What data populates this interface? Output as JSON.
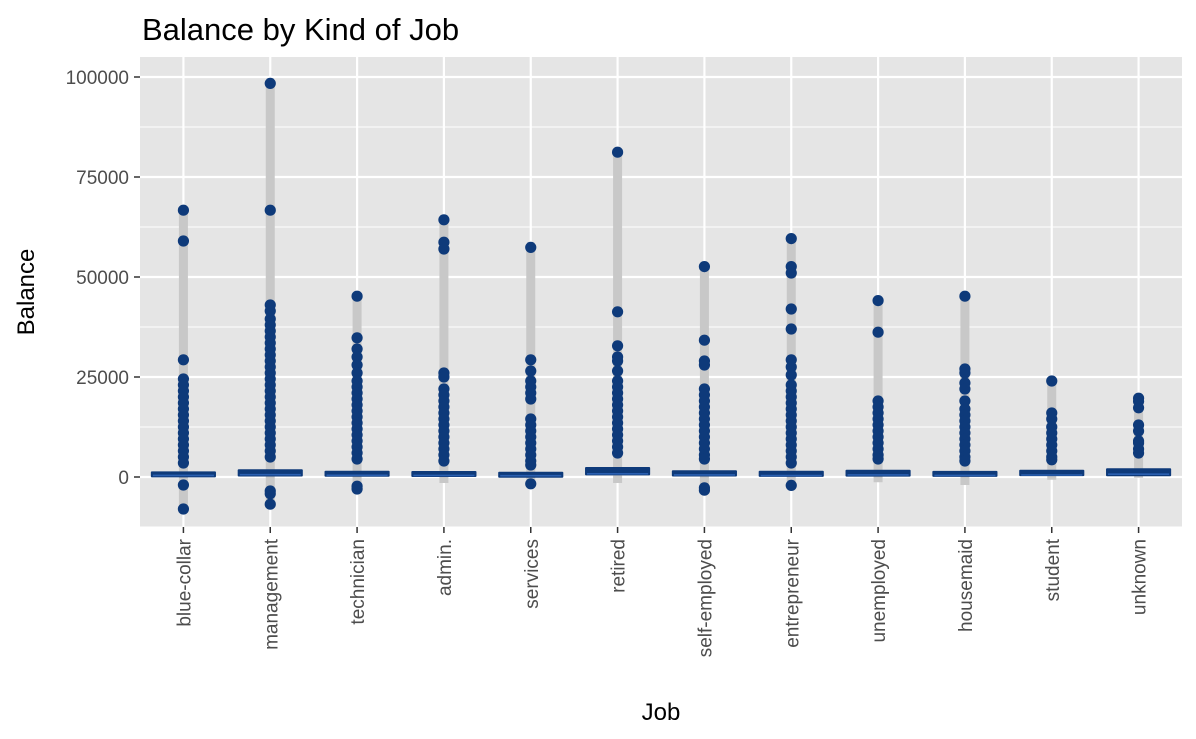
{
  "chart_data": {
    "type": "boxplot",
    "title": "Balance by Kind of Job",
    "xlabel": "Job",
    "ylabel": "Balance",
    "ylim": [
      -12500,
      105000
    ],
    "yticks": [
      0,
      25000,
      50000,
      75000,
      100000
    ],
    "ytick_labels": [
      "0",
      "25000",
      "50000",
      "75000",
      "100000"
    ],
    "grid": true,
    "colors": {
      "panel": "#e5e5e5",
      "grid_major": "#ffffff",
      "whisker": "#c8c8c8",
      "box": "#0e3a7a",
      "point": "#0e3a7a",
      "median": "#2a5fb0",
      "text": "#4d4d4d"
    },
    "categories": [
      "blue-collar",
      "management",
      "technician",
      "admin.",
      "services",
      "retired",
      "self-employed",
      "entrepreneur",
      "unemployed",
      "housemaid",
      "student",
      "unknown"
    ],
    "series": [
      {
        "category": "blue-collar",
        "q1": 60,
        "median": 390,
        "q3": 1240,
        "whisker_low": -8000,
        "whisker_high": 66700,
        "outliers": [
          66700,
          59000,
          29300,
          24500,
          23000,
          21500,
          20000,
          18500,
          17000,
          15500,
          14000,
          12500,
          11000,
          9500,
          8000,
          6500,
          5000,
          3500,
          -2000,
          -8000
        ]
      },
      {
        "category": "management",
        "q1": 140,
        "median": 570,
        "q3": 1950,
        "whisker_low": -6800,
        "whisker_high": 98400,
        "outliers": [
          98400,
          66700,
          43000,
          41500,
          39500,
          38000,
          36500,
          35000,
          33500,
          32000,
          30500,
          29000,
          27500,
          26000,
          24500,
          23000,
          21500,
          20000,
          18500,
          17000,
          15500,
          14000,
          12500,
          11000,
          9500,
          8000,
          6500,
          5000,
          -3500,
          -4200,
          -6800
        ]
      },
      {
        "category": "technician",
        "q1": 140,
        "median": 420,
        "q3": 1480,
        "whisker_low": -3000,
        "whisker_high": 45200,
        "outliers": [
          45200,
          34800,
          32000,
          30000,
          28000,
          26000,
          24000,
          22500,
          21000,
          19500,
          18000,
          16500,
          15000,
          13500,
          12000,
          10500,
          9000,
          7500,
          6000,
          4500,
          -2300,
          -3000
        ]
      },
      {
        "category": "admin.",
        "q1": 120,
        "median": 400,
        "q3": 1350,
        "whisker_low": -1500,
        "whisker_high": 64300,
        "outliers": [
          64300,
          58700,
          57000,
          26000,
          25000,
          22000,
          20500,
          19000,
          17500,
          16000,
          14500,
          13000,
          11500,
          10000,
          8500,
          7000,
          5500,
          4000
        ]
      },
      {
        "category": "services",
        "q1": 70,
        "median": 340,
        "q3": 1080,
        "whisker_low": -1800,
        "whisker_high": 57400,
        "outliers": [
          57400,
          29300,
          26500,
          24000,
          22500,
          21000,
          19500,
          14500,
          13000,
          11500,
          10000,
          8500,
          7000,
          5500,
          4000,
          3000,
          -1700
        ]
      },
      {
        "category": "retired",
        "q1": 400,
        "median": 790,
        "q3": 2500,
        "whisker_low": -1500,
        "whisker_high": 81200,
        "outliers": [
          81200,
          41300,
          32800,
          30000,
          29000,
          26500,
          24000,
          22500,
          21000,
          19500,
          18000,
          16500,
          15000,
          13500,
          12000,
          10500,
          9000,
          7500,
          6000
        ]
      },
      {
        "category": "self-employed",
        "q1": 140,
        "median": 520,
        "q3": 1700,
        "whisker_low": -3300,
        "whisker_high": 52600,
        "outliers": [
          52600,
          34200,
          29000,
          28000,
          22000,
          20500,
          19000,
          17500,
          16000,
          14500,
          13000,
          11500,
          10000,
          8500,
          7000,
          5500,
          4500,
          -2700,
          -3300
        ]
      },
      {
        "category": "entrepreneur",
        "q1": 40,
        "median": 350,
        "q3": 1550,
        "whisker_low": -2100,
        "whisker_high": 59600,
        "outliers": [
          59600,
          52600,
          51000,
          42000,
          37000,
          29300,
          27500,
          25500,
          23000,
          21500,
          20000,
          18500,
          17000,
          15500,
          14000,
          12500,
          11000,
          9500,
          8000,
          6500,
          5000,
          3500,
          -2100
        ]
      },
      {
        "category": "unemployed",
        "q1": 90,
        "median": 520,
        "q3": 1800,
        "whisker_low": -1300,
        "whisker_high": 44100,
        "outliers": [
          44100,
          36200,
          19000,
          17500,
          16000,
          14500,
          13000,
          11500,
          10000,
          8500,
          7000,
          5500,
          4500
        ]
      },
      {
        "category": "housemaid",
        "q1": 60,
        "median": 400,
        "q3": 1500,
        "whisker_low": -2000,
        "whisker_high": 45200,
        "outliers": [
          45200,
          27000,
          26000,
          23500,
          22000,
          19000,
          17000,
          15500,
          14000,
          12500,
          11000,
          9500,
          8000,
          6500,
          5000,
          4000
        ]
      },
      {
        "category": "student",
        "q1": 230,
        "median": 500,
        "q3": 1800,
        "whisker_low": -700,
        "whisker_high": 24000,
        "outliers": [
          24000,
          16000,
          14500,
          12500,
          11000,
          9500,
          8000,
          6500,
          5000,
          4300
        ]
      },
      {
        "category": "unknown",
        "q1": 200,
        "median": 700,
        "q3": 2200,
        "whisker_low": -200,
        "whisker_high": 19700,
        "outliers": [
          19700,
          18900,
          17300,
          13000,
          11500,
          9000,
          8500,
          7000,
          6000
        ]
      }
    ]
  }
}
